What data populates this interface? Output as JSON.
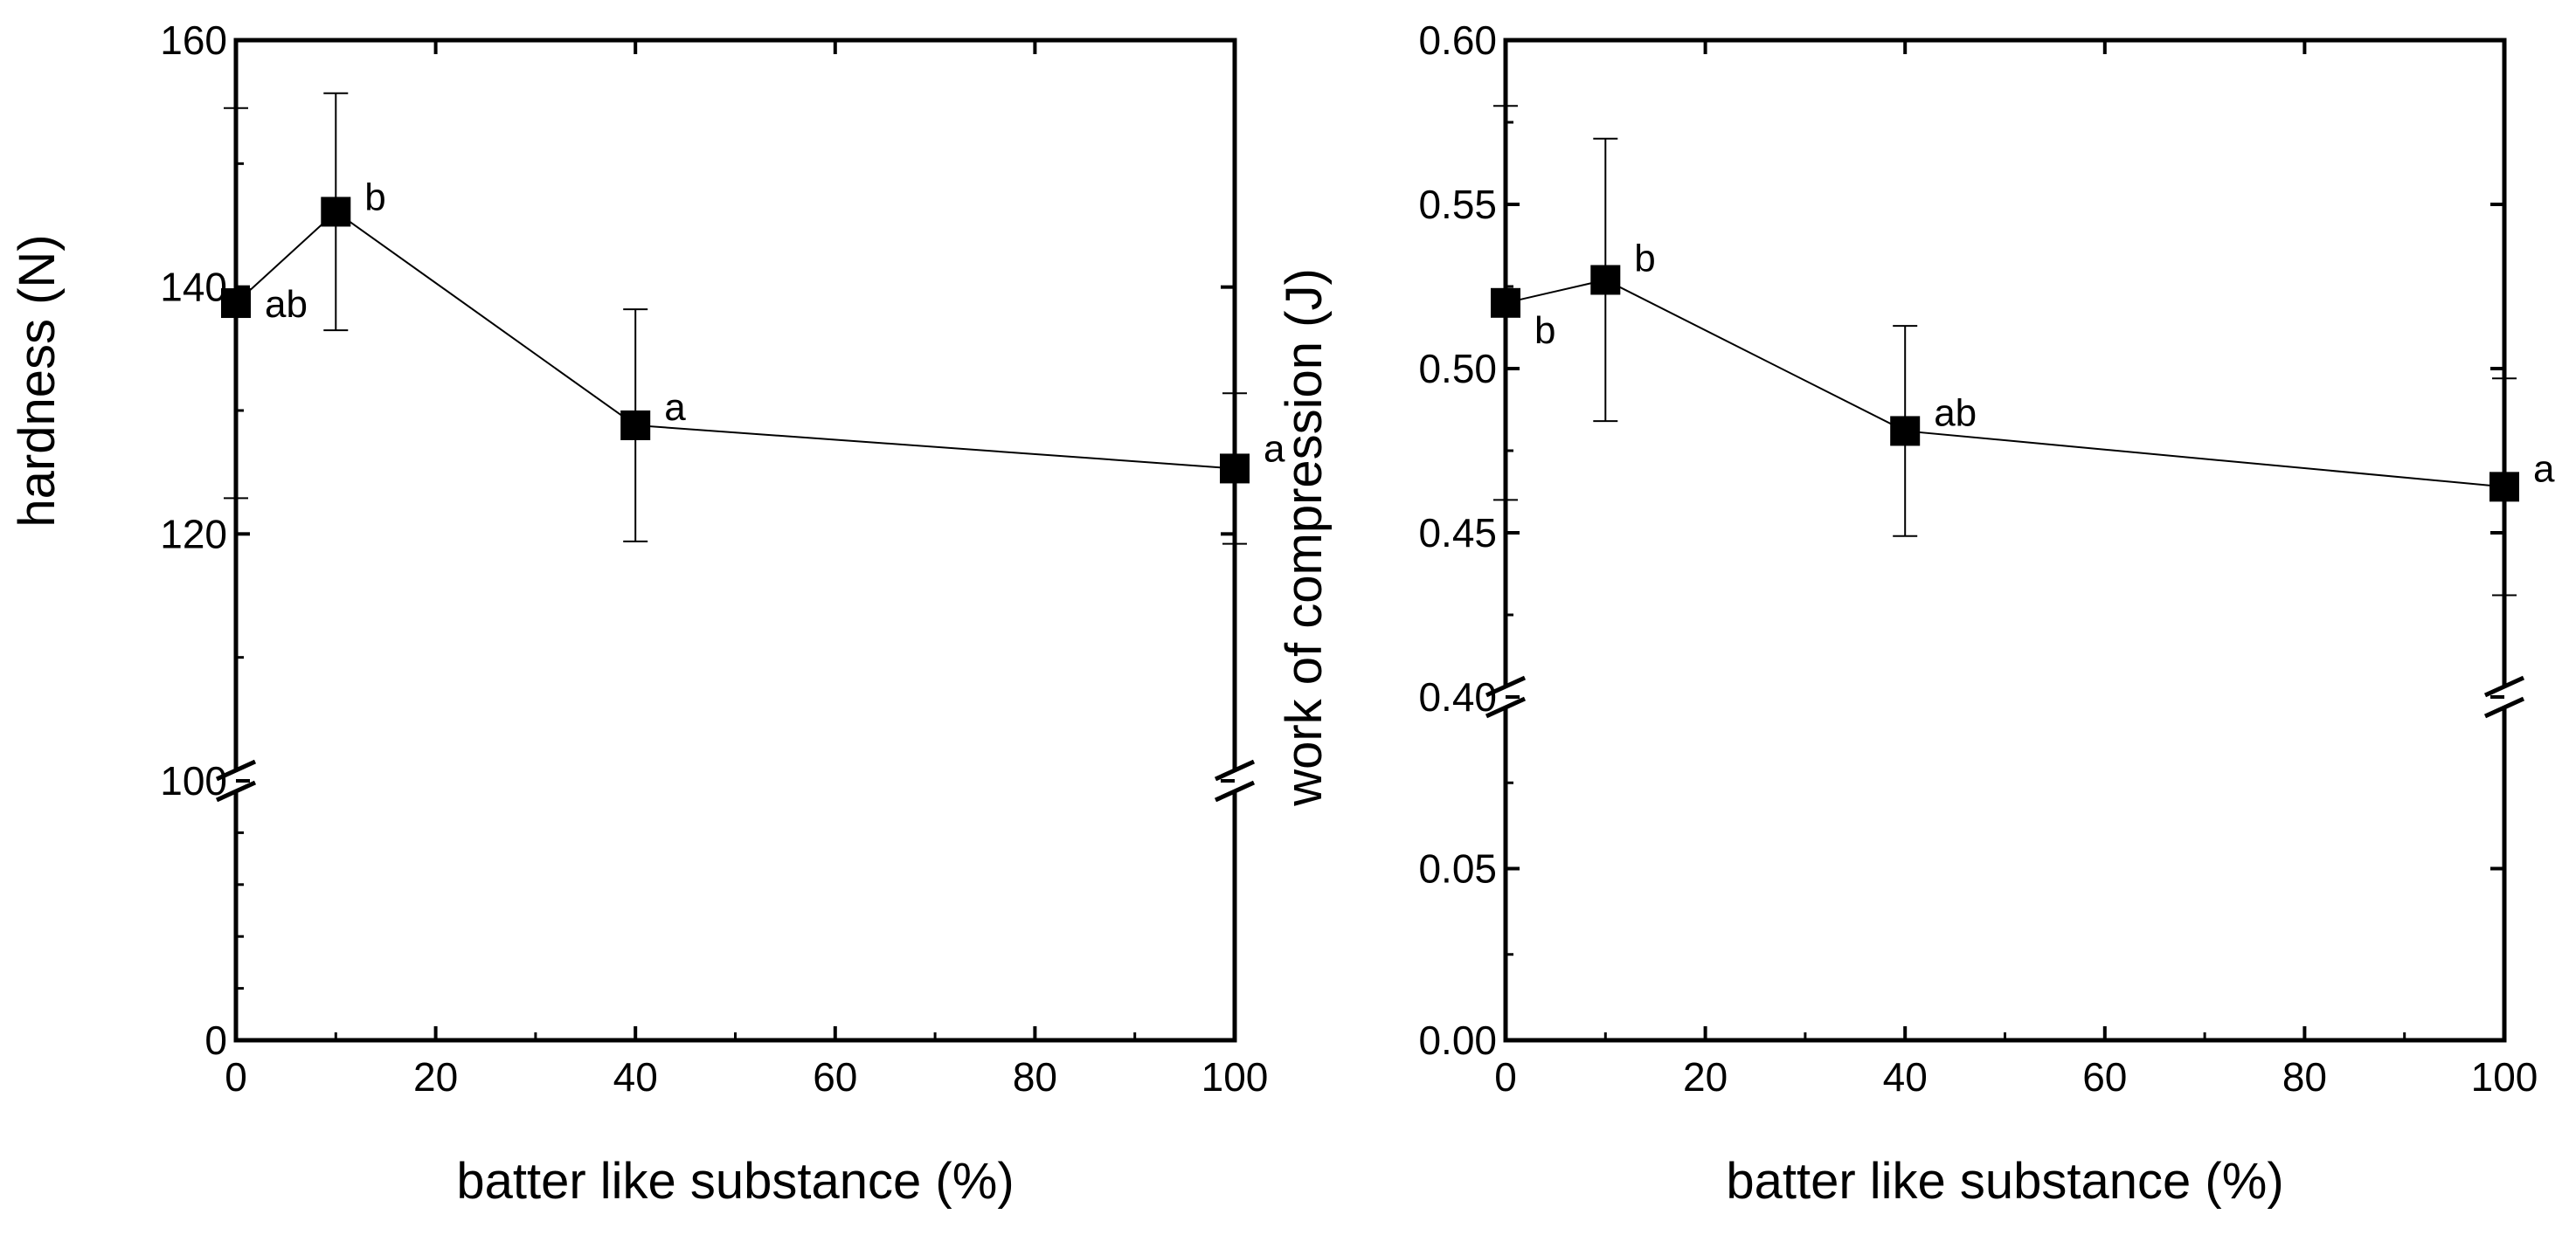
{
  "chart_data": [
    {
      "type": "line",
      "panel": "left",
      "title": "",
      "xlabel": "batter like substance (%)",
      "ylabel": "hardness (N)",
      "x": [
        0,
        10,
        40,
        100
      ],
      "values": [
        138.7,
        146.1,
        128.8,
        125.3
      ],
      "error": [
        15.8,
        9.6,
        9.4,
        6.1
      ],
      "significance": [
        "ab",
        "b",
        "a",
        "a"
      ],
      "xlim": [
        0,
        100
      ],
      "xticks": [
        0,
        20,
        40,
        60,
        80,
        100
      ],
      "ylim_lower": [
        0,
        100
      ],
      "ylim_upper": [
        100,
        160
      ],
      "yticks_lower": [
        0
      ],
      "yticks_upper": [
        100,
        120,
        140,
        160
      ],
      "axis_break": true,
      "grid": false,
      "marker": "square"
    },
    {
      "type": "line",
      "panel": "right",
      "title": "",
      "xlabel": "batter like substance (%)",
      "ylabel": "work of compression (J)",
      "x": [
        0,
        10,
        40,
        100
      ],
      "values": [
        0.52,
        0.527,
        0.481,
        0.464
      ],
      "error": [
        0.06,
        0.043,
        0.032,
        0.033
      ],
      "significance": [
        "b",
        "b",
        "ab",
        "a"
      ],
      "xlim": [
        0,
        100
      ],
      "xticks": [
        0,
        20,
        40,
        60,
        80,
        100
      ],
      "ylim_lower": [
        0,
        0.1
      ],
      "ylim_upper": [
        0.4,
        0.6
      ],
      "yticks_lower": [
        0.0,
        0.05
      ],
      "yticks_upper": [
        0.4,
        0.45,
        0.5,
        0.55,
        0.6
      ],
      "ytick_labels_lower": [
        "0.00",
        "0.05"
      ],
      "ytick_labels_upper": [
        "0.40",
        "0.45",
        "0.50",
        "0.55",
        "0.60"
      ],
      "axis_break": true,
      "grid": false,
      "marker": "square"
    }
  ]
}
